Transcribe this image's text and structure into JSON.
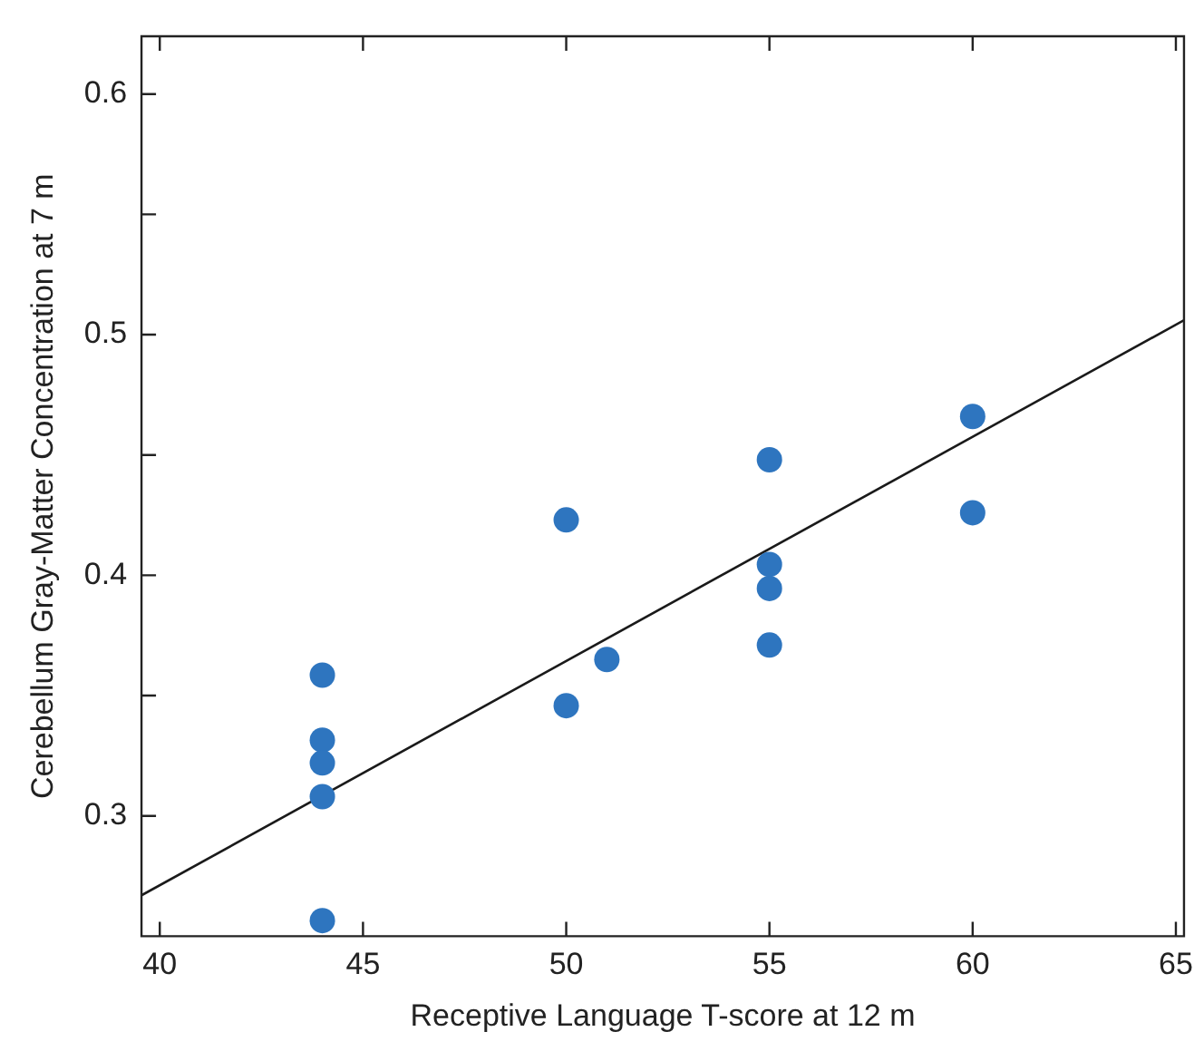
{
  "chart_data": {
    "type": "scatter",
    "xlabel": "Receptive Language T-score at 12 m",
    "ylabel": "Cerebellum Gray-Matter Concentration at 7 m",
    "xlim": [
      39.55,
      65.2
    ],
    "xticks": [
      40,
      45,
      50,
      55,
      60,
      65
    ],
    "ylim": [
      0.25,
      0.624
    ],
    "yticks": [
      0.3,
      {
        "value": 0.35,
        "label": null
      },
      0.4,
      {
        "value": 0.45,
        "label": null
      },
      0.5,
      {
        "value": 0.55,
        "label": null
      },
      0.6
    ],
    "grid": false,
    "legend": false,
    "marker": "circle",
    "series": [
      {
        "color": "#2e75bf",
        "x": [
          44,
          44,
          44,
          44,
          44,
          50,
          50,
          51,
          55,
          55,
          55,
          55,
          60,
          60
        ],
        "values": [
          0.3585,
          0.3315,
          0.322,
          0.308,
          0.2565,
          0.423,
          0.3458,
          0.365,
          0.448,
          0.4045,
          0.3945,
          0.371,
          0.466,
          0.426
        ]
      },
      {
        "type": "line",
        "color": "#1a1a1a",
        "marker": "none",
        "x": [
          39.55,
          65.2
        ],
        "values": [
          0.267,
          0.506
        ]
      }
    ]
  }
}
